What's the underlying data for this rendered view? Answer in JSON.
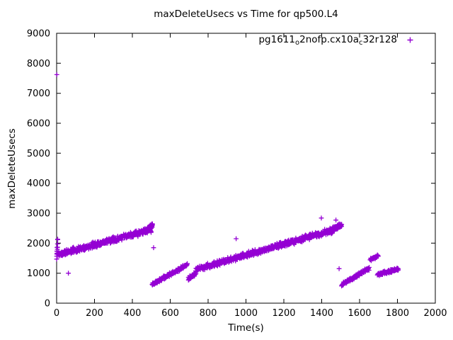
{
  "chart_data": {
    "type": "scatter",
    "title": "maxDeleteUsecs vs Time for qp500.L4",
    "xlabel": "Time(s)",
    "ylabel": "maxDeleteUsecs",
    "xlim": [
      0,
      2000
    ],
    "ylim": [
      0,
      9000
    ],
    "xtick_step": 200,
    "ytick_step": 1000,
    "grid": false,
    "legend_position": "top-right-inside",
    "marker": "plus",
    "marker_color": "#9400D3",
    "marker_size": 3.4,
    "seed": 11,
    "legend_parts": [
      {
        "text": "pg1611",
        "sub": false
      },
      {
        "text": "o",
        "sub": true
      },
      {
        "text": "2nofp.cx10a",
        "sub": false
      },
      {
        "text": "c",
        "sub": true
      },
      {
        "text": "32r128",
        "sub": false
      }
    ],
    "series": [
      {
        "name": "pg1611_o2nofp.cx10a_c32r128",
        "bands": [
          {
            "x0": 2,
            "x1": 500,
            "y0": 1620,
            "y1": 2450,
            "jitter": 110,
            "count": 420
          },
          {
            "x0": 0,
            "x1": 6,
            "y0": 1500,
            "y1": 2100,
            "jitter": 250,
            "count": 12
          },
          {
            "x0": 478,
            "x1": 506,
            "y0": 2430,
            "y1": 2600,
            "jitter": 90,
            "count": 60
          },
          {
            "x0": 505,
            "x1": 690,
            "y0": 630,
            "y1": 1280,
            "jitter": 70,
            "count": 150
          },
          {
            "x0": 695,
            "x1": 735,
            "y0": 820,
            "y1": 980,
            "jitter": 70,
            "count": 35
          },
          {
            "x0": 735,
            "x1": 1450,
            "y0": 1120,
            "y1": 2420,
            "jitter": 110,
            "count": 560
          },
          {
            "x0": 1440,
            "x1": 1505,
            "y0": 2380,
            "y1": 2600,
            "jitter": 110,
            "count": 70
          },
          {
            "x0": 1505,
            "x1": 1650,
            "y0": 610,
            "y1": 1160,
            "jitter": 65,
            "count": 120
          },
          {
            "x0": 1655,
            "x1": 1700,
            "y0": 1450,
            "y1": 1580,
            "jitter": 60,
            "count": 30
          },
          {
            "x0": 1695,
            "x1": 1805,
            "y0": 960,
            "y1": 1130,
            "jitter": 60,
            "count": 90
          }
        ],
        "outliers": [
          [
            1,
            7620
          ],
          [
            62,
            1000
          ],
          [
            512,
            1850
          ],
          [
            948,
            2150
          ],
          [
            1398,
            2840
          ],
          [
            1475,
            2770
          ],
          [
            1492,
            1150
          ]
        ]
      }
    ]
  }
}
